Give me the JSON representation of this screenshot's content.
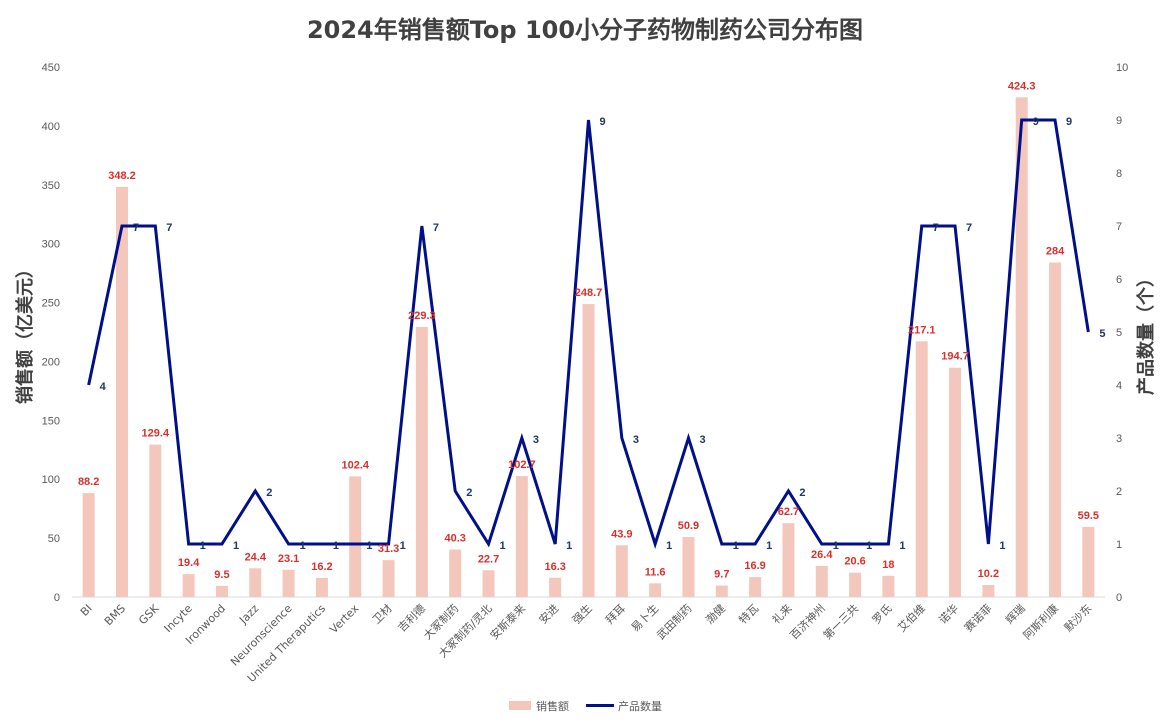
{
  "chart_data": {
    "type": "bar",
    "title": "2024年销售额Top 100小分子药物制药公司分布图",
    "ylabel": "销售额（亿美元）",
    "y2label": "产品数量（个）",
    "ylim": [
      0,
      450
    ],
    "y2lim": [
      0,
      10
    ],
    "yticks": [
      "0",
      "50",
      "100",
      "150",
      "200",
      "250",
      "300",
      "350",
      "400",
      "450"
    ],
    "y2ticks": [
      "0",
      "1",
      "2",
      "3",
      "4",
      "5",
      "6",
      "7",
      "8",
      "9",
      "10"
    ],
    "categories": [
      "BI",
      "BMS",
      "GSK",
      "Incyte",
      "Ironwood",
      "Jazz",
      "Neuronscience",
      "United Theraputics",
      "Vertex",
      "卫材",
      "吉利德",
      "大冢制药",
      "大冢制药/灵北",
      "安斯泰来",
      "安进",
      "强生",
      "拜耳",
      "易卜生",
      "武田制药",
      "渤健",
      "特瓦",
      "礼来",
      "百济神州",
      "第一三共",
      "罗氏",
      "艾伯维",
      "诺华",
      "赛诺菲",
      "辉瑞",
      "阿斯利康",
      "默沙东"
    ],
    "series": [
      {
        "name": "销售额",
        "kind": "bar",
        "axis": "left",
        "color": "#f4c7bc",
        "values": [
          88.2,
          348.2,
          129.4,
          19.4,
          9.5,
          24.4,
          23.1,
          16.2,
          102.4,
          31.3,
          229.3,
          40.3,
          22.7,
          102.7,
          16.3,
          248.7,
          43.9,
          11.6,
          50.9,
          9.7,
          16.9,
          62.7,
          26.4,
          20.6,
          18,
          217.1,
          194.7,
          10.2,
          424.3,
          284,
          59.5
        ],
        "labels": [
          "88.2",
          "348.2",
          "129.4",
          "19.4",
          "9.5",
          "24.4",
          "23.1",
          "16.2",
          "102.4",
          "31.3",
          "229.3",
          "40.3",
          "22.7",
          "102.7",
          "16.3",
          "248.7",
          "43.9",
          "11.6",
          "50.9",
          "9.7",
          "16.9",
          "62.7",
          "26.4",
          "20.6",
          "18",
          "217.1",
          "194.7",
          "10.2",
          "424.3",
          "284",
          "59.5"
        ]
      },
      {
        "name": "产品数量",
        "kind": "line",
        "axis": "right",
        "color": "#000f8a",
        "values": [
          4,
          7,
          7,
          1,
          1,
          2,
          1,
          1,
          1,
          1,
          7,
          2,
          1,
          3,
          1,
          9,
          3,
          1,
          3,
          1,
          1,
          2,
          1,
          1,
          1,
          7,
          7,
          1,
          9,
          9,
          5
        ],
        "labels": [
          "4",
          "7",
          "7",
          "1",
          "1",
          "2",
          "1",
          "1",
          "1",
          "1",
          "7",
          "2",
          "1",
          "3",
          "1",
          "9",
          "3",
          "1",
          "3",
          "1",
          "1",
          "2",
          "1",
          "1",
          "1",
          "7",
          "7",
          "1",
          "9",
          "9",
          "5"
        ]
      }
    ],
    "grid": false,
    "legend_position": "bottom"
  }
}
